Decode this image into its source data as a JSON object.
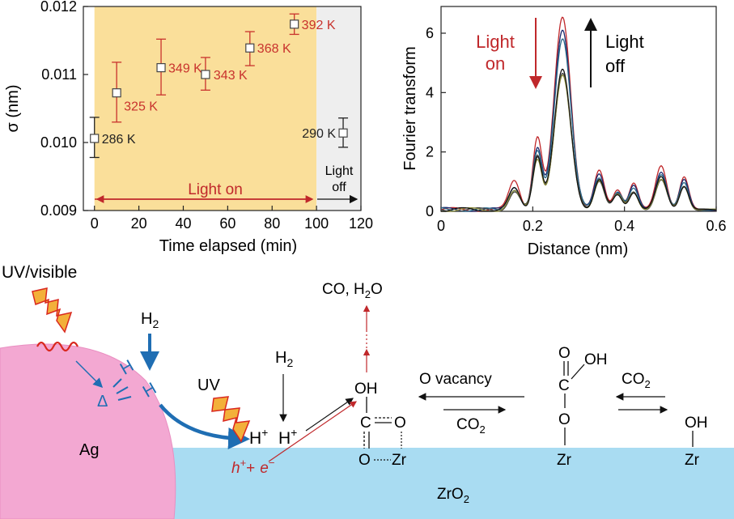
{
  "chart_data": [
    {
      "type": "scatter",
      "xlabel": "Time elapsed (min)",
      "ylabel": "σ (nm)",
      "xlim": [
        -5,
        120
      ],
      "ylim": [
        0.009,
        0.012
      ],
      "x_ticks": [
        "0",
        "20",
        "40",
        "60",
        "80",
        "100",
        "120"
      ],
      "y_ticks": [
        "0.009",
        "0.010",
        "0.011",
        "0.012"
      ],
      "points": [
        {
          "x": 0,
          "y": 0.01006,
          "lo": 0.00978,
          "hi": 0.01037,
          "label": "286 K",
          "color": "#222222"
        },
        {
          "x": 10,
          "y": 0.01073,
          "lo": 0.0103,
          "hi": 0.01118,
          "label": "325 K",
          "color": "#c8322d"
        },
        {
          "x": 30,
          "y": 0.0111,
          "lo": 0.0107,
          "hi": 0.01152,
          "label": "349 K",
          "color": "#c8322d"
        },
        {
          "x": 50,
          "y": 0.011,
          "lo": 0.01077,
          "hi": 0.01125,
          "label": "343 K",
          "color": "#c8322d"
        },
        {
          "x": 70,
          "y": 0.01139,
          "lo": 0.01113,
          "hi": 0.01163,
          "label": "368 K",
          "color": "#c8322d"
        },
        {
          "x": 90,
          "y": 0.01174,
          "lo": 0.01159,
          "hi": 0.01189,
          "label": "392 K",
          "color": "#c8322d"
        },
        {
          "x": 112,
          "y": 0.01014,
          "lo": 0.00993,
          "hi": 0.01036,
          "label": "290 K",
          "color": "#222222"
        }
      ],
      "regions": [
        {
          "from": 0,
          "to": 100,
          "label": "Light on",
          "color": "#fadf9a"
        },
        {
          "from": 100,
          "to": 120,
          "label": "Light off",
          "color": "#eeeeee"
        }
      ],
      "annotations": {
        "light_on": "Light on",
        "light_off_1": "Light",
        "light_off_2": "off"
      }
    },
    {
      "type": "line",
      "xlabel": "Distance (nm)",
      "ylabel": "Fourier transform",
      "xlim": [
        0,
        0.6
      ],
      "ylim": [
        0,
        6.9
      ],
      "x_ticks": [
        "0",
        "0.2",
        "0.4",
        "0.6"
      ],
      "y_ticks": [
        "0",
        "2",
        "4",
        "6"
      ],
      "peaks": [
        {
          "x": 0.265,
          "w": 0.018
        },
        {
          "x": 0.16,
          "w": 0.012
        },
        {
          "x": 0.21,
          "w": 0.01
        },
        {
          "x": 0.345,
          "w": 0.011
        },
        {
          "x": 0.385,
          "w": 0.01
        },
        {
          "x": 0.42,
          "w": 0.01
        },
        {
          "x": 0.48,
          "w": 0.012
        },
        {
          "x": 0.53,
          "w": 0.01
        }
      ],
      "series": [
        {
          "color": "#c0282b",
          "amps": [
            6.5,
            1.0,
            2.4,
            1.3,
            0.7,
            0.9,
            1.5,
            1.1
          ]
        },
        {
          "color": "#1c2a6e",
          "amps": [
            6.1,
            0.8,
            2.0,
            1.2,
            0.6,
            0.8,
            1.3,
            1.0
          ]
        },
        {
          "color": "#2a6a8a",
          "amps": [
            5.8,
            0.7,
            1.9,
            1.1,
            0.6,
            0.7,
            1.2,
            0.9
          ]
        },
        {
          "color": "#444444",
          "amps": [
            4.6,
            0.6,
            1.8,
            1.0,
            0.5,
            0.6,
            1.0,
            0.8
          ]
        },
        {
          "color": "#8a8a3a",
          "amps": [
            4.5,
            0.6,
            1.7,
            1.0,
            0.5,
            0.6,
            1.0,
            0.8
          ]
        },
        {
          "color": "#111111",
          "amps": [
            4.7,
            0.7,
            1.8,
            1.0,
            0.5,
            0.6,
            1.1,
            0.8
          ]
        }
      ],
      "annotations": {
        "light_on_1": "Light",
        "light_on_2": "on",
        "light_off_1": "Light",
        "light_off_2": "off"
      }
    }
  ],
  "scheme": {
    "uv_visible": "UV/visible",
    "h2_top": "H",
    "h2_top_sub": "2",
    "h_left": "H",
    "h_right": "H",
    "delta": "Δ",
    "uv": "UV",
    "ag": "Ag",
    "h2_mid": "H",
    "h2_mid_sub": "2",
    "hplus1": "H",
    "hplus2": "H",
    "plus": "+",
    "hole": "h",
    "electron": "e",
    "and": "+",
    "minus": "−",
    "co_h2o_1": "CO, H",
    "co_h2o_sub": "2",
    "co_h2o_2": "O",
    "oh_top": "OH",
    "c_center": "C",
    "o_right": "O",
    "o_left": "O",
    "zr_1": "Zr",
    "o_vacancy": "O vacancy",
    "co2_1": "CO",
    "co2_1_sub": "2",
    "o_carbonyl": "O",
    "oh_bic": "OH",
    "c_bic": "C",
    "o_bic": "O",
    "zr_2": "Zr",
    "co2_2": "CO",
    "co2_2_sub": "2",
    "oh_last": "OH",
    "zr_3": "Zr",
    "zro2": "ZrO",
    "zro2_sub": "2"
  }
}
